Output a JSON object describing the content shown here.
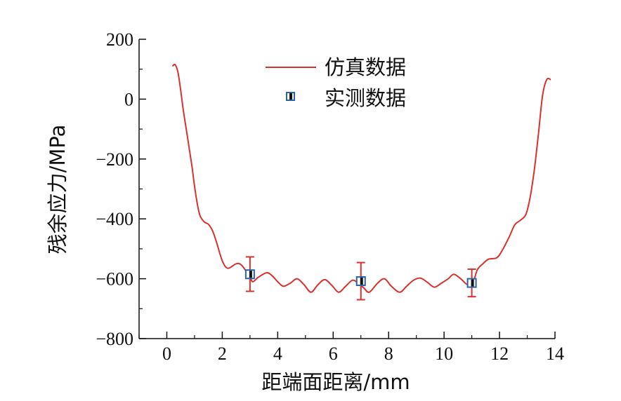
{
  "chart_data": {
    "type": "line",
    "xlabel": "距端面距离/mm",
    "ylabel": "残余应力/MPa",
    "xlim": [
      -1,
      14
    ],
    "ylim": [
      -800,
      200
    ],
    "x_ticks": [
      0,
      2,
      4,
      6,
      8,
      10,
      12,
      14
    ],
    "y_ticks": [
      -800,
      -600,
      -400,
      -200,
      0,
      200
    ],
    "x_tick_labels": [
      "0",
      "2",
      "4",
      "6",
      "8",
      "10",
      "12",
      "14"
    ],
    "y_tick_labels": [
      "−800",
      "−600",
      "−400",
      "−200",
      "0",
      "200"
    ],
    "grid": false,
    "legend": {
      "placement": "top-center"
    },
    "series": [
      {
        "name": "仿真数据",
        "style": "line",
        "color": "#d7322d",
        "points": [
          [
            0.2,
            110
          ],
          [
            0.3,
            115
          ],
          [
            0.4,
            90
          ],
          [
            0.5,
            30
          ],
          [
            0.6,
            -40
          ],
          [
            0.75,
            -130
          ],
          [
            0.9,
            -220
          ],
          [
            1.0,
            -290
          ],
          [
            1.1,
            -350
          ],
          [
            1.2,
            -390
          ],
          [
            1.35,
            -410
          ],
          [
            1.5,
            -418
          ],
          [
            1.65,
            -440
          ],
          [
            1.8,
            -480
          ],
          [
            2.0,
            -540
          ],
          [
            2.2,
            -565
          ],
          [
            2.5,
            -550
          ],
          [
            2.7,
            -555
          ],
          [
            3.0,
            -595
          ],
          [
            3.1,
            -610
          ],
          [
            3.3,
            -595
          ],
          [
            3.6,
            -580
          ],
          [
            3.8,
            -590
          ],
          [
            4.0,
            -610
          ],
          [
            4.2,
            -625
          ],
          [
            4.45,
            -615
          ],
          [
            4.7,
            -600
          ],
          [
            4.95,
            -620
          ],
          [
            5.2,
            -645
          ],
          [
            5.45,
            -620
          ],
          [
            5.7,
            -603
          ],
          [
            5.95,
            -622
          ],
          [
            6.2,
            -645
          ],
          [
            6.45,
            -625
          ],
          [
            6.7,
            -605
          ],
          [
            6.9,
            -615
          ],
          [
            7.1,
            -630
          ],
          [
            7.3,
            -645
          ],
          [
            7.6,
            -615
          ],
          [
            7.85,
            -600
          ],
          [
            8.1,
            -625
          ],
          [
            8.4,
            -645
          ],
          [
            8.65,
            -625
          ],
          [
            8.9,
            -605
          ],
          [
            9.15,
            -598
          ],
          [
            9.4,
            -612
          ],
          [
            9.65,
            -628
          ],
          [
            9.9,
            -615
          ],
          [
            10.15,
            -600
          ],
          [
            10.35,
            -585
          ],
          [
            10.6,
            -600
          ],
          [
            10.85,
            -620
          ],
          [
            11.05,
            -610
          ],
          [
            11.2,
            -570
          ],
          [
            11.4,
            -550
          ],
          [
            11.6,
            -535
          ],
          [
            11.9,
            -530
          ],
          [
            12.1,
            -505
          ],
          [
            12.35,
            -460
          ],
          [
            12.55,
            -420
          ],
          [
            12.75,
            -405
          ],
          [
            12.95,
            -385
          ],
          [
            13.1,
            -330
          ],
          [
            13.25,
            -240
          ],
          [
            13.4,
            -120
          ],
          [
            13.55,
            10
          ],
          [
            13.7,
            65
          ],
          [
            13.85,
            65
          ]
        ]
      },
      {
        "name": "实测数据",
        "style": "marker",
        "color": "#2a63a8",
        "points": [
          {
            "x": 3.0,
            "y": -585,
            "err_low": -642,
            "err_high": -527
          },
          {
            "x": 7.0,
            "y": -608,
            "err_low": -670,
            "err_high": -546
          },
          {
            "x": 11.0,
            "y": -614,
            "err_low": -660,
            "err_high": -568
          }
        ]
      }
    ]
  }
}
